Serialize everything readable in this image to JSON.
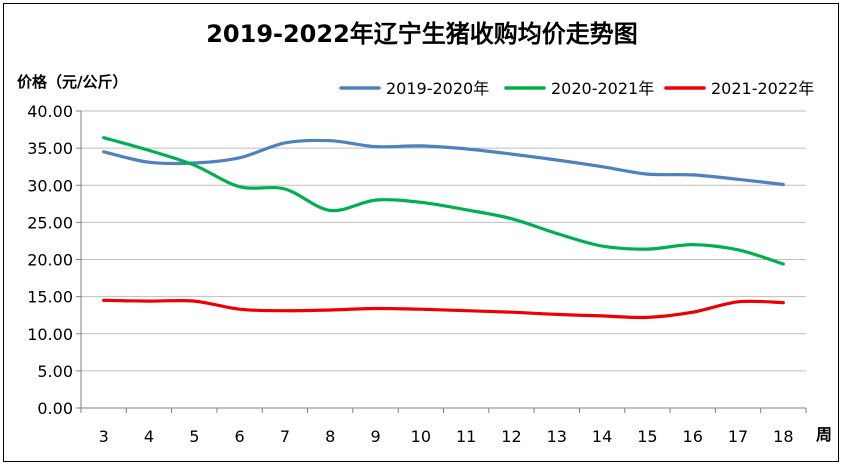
{
  "chart_data": {
    "type": "line",
    "title": "2019-2022年辽宁生猪收购均价走势图",
    "ylabel": "价格（元/公斤）",
    "xlabel": "周",
    "x": [
      3,
      4,
      5,
      6,
      7,
      8,
      9,
      10,
      11,
      12,
      13,
      14,
      15,
      16,
      17,
      18
    ],
    "ylim": [
      0,
      40
    ],
    "yticks": [
      "0.00",
      "5.00",
      "10.00",
      "15.00",
      "20.00",
      "25.00",
      "30.00",
      "35.00",
      "40.00"
    ],
    "grid": true,
    "legend": "top-right",
    "series": [
      {
        "name": "2019-2020年",
        "color": "#4f81bd",
        "values": [
          34.5,
          33.1,
          33.0,
          33.7,
          35.7,
          36.0,
          35.2,
          35.3,
          34.9,
          34.2,
          33.4,
          32.5,
          31.5,
          31.4,
          30.8,
          30.1
        ]
      },
      {
        "name": "2020-2021年",
        "color": "#00b050",
        "values": [
          36.4,
          34.7,
          32.7,
          29.8,
          29.5,
          26.6,
          28.0,
          27.7,
          26.7,
          25.5,
          23.5,
          21.8,
          21.4,
          22.0,
          21.3,
          19.4
        ]
      },
      {
        "name": "2021-2022年",
        "color": "#ee0000",
        "values": [
          14.5,
          14.4,
          14.4,
          13.3,
          13.1,
          13.2,
          13.4,
          13.3,
          13.1,
          12.9,
          12.6,
          12.4,
          12.2,
          12.9,
          14.3,
          14.2
        ]
      }
    ]
  }
}
